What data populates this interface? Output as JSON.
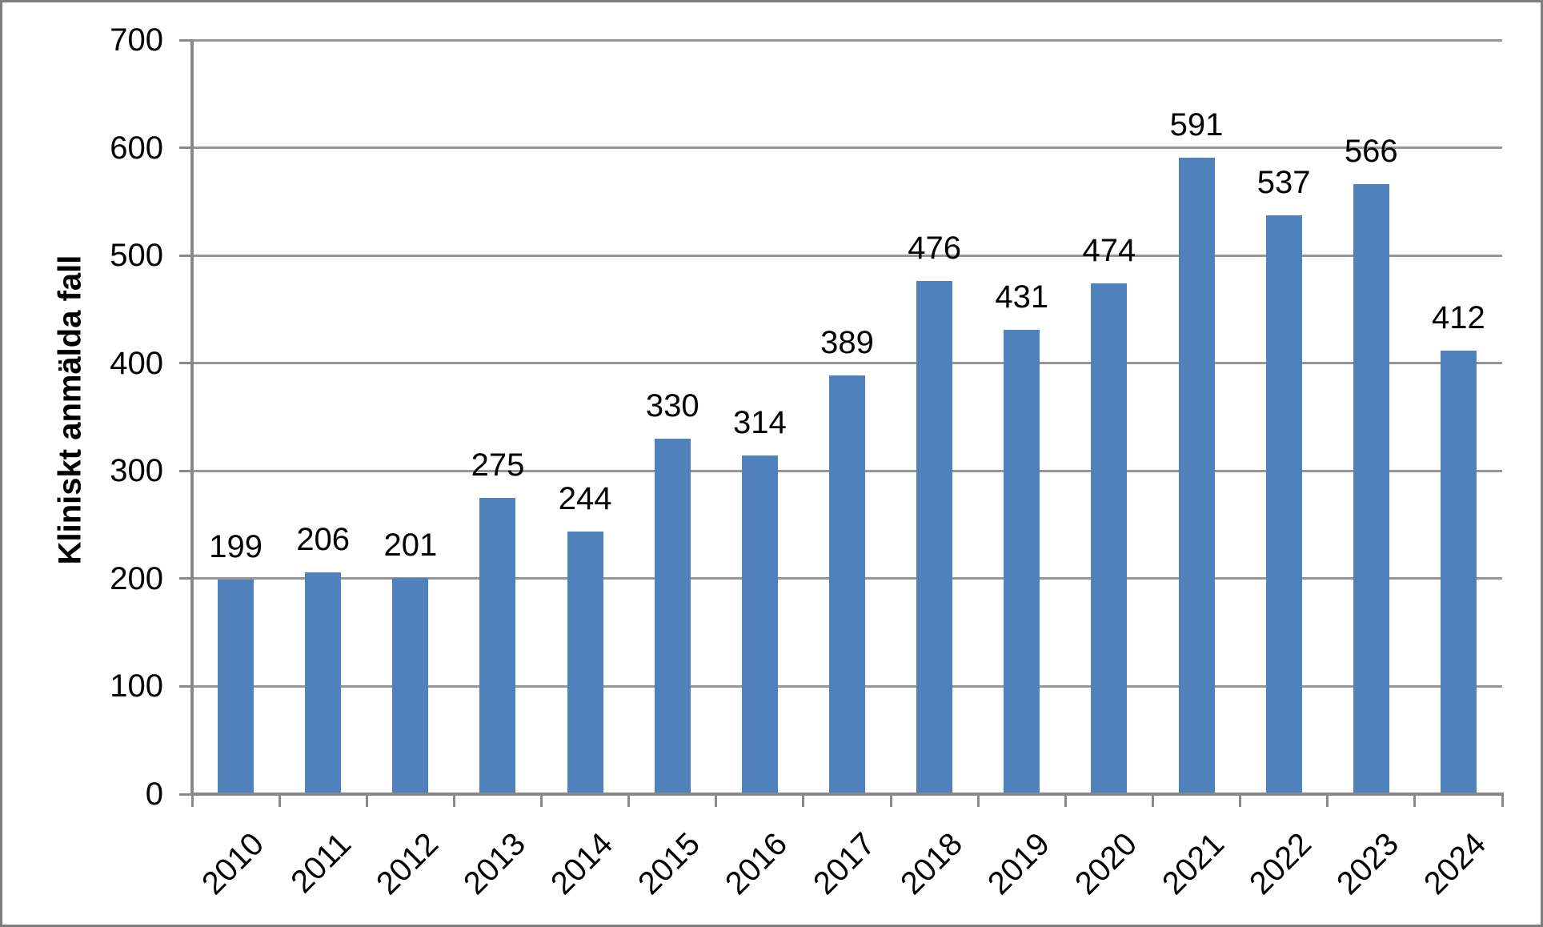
{
  "chart_data": {
    "type": "bar",
    "title": "",
    "ylabel": "Kliniskt anmälda fall",
    "xlabel": "",
    "categories": [
      "2010",
      "2011",
      "2012",
      "2013",
      "2014",
      "2015",
      "2016",
      "2017",
      "2018",
      "2019",
      "2020",
      "2021",
      "2022",
      "2023",
      "2024"
    ],
    "values": [
      199,
      206,
      201,
      275,
      244,
      330,
      314,
      389,
      476,
      431,
      474,
      591,
      537,
      566,
      412
    ],
    "ylim": [
      0,
      700
    ],
    "y_ticks": [
      0,
      100,
      200,
      300,
      400,
      500,
      600,
      700
    ],
    "grid": true,
    "legend": false,
    "bar_color": "#4f81bd",
    "gridline_color": "#969696",
    "axis_color": "#898989",
    "text_color": "#000000",
    "frame_color": "#7f7f7f",
    "background_color": "#ffffff"
  }
}
